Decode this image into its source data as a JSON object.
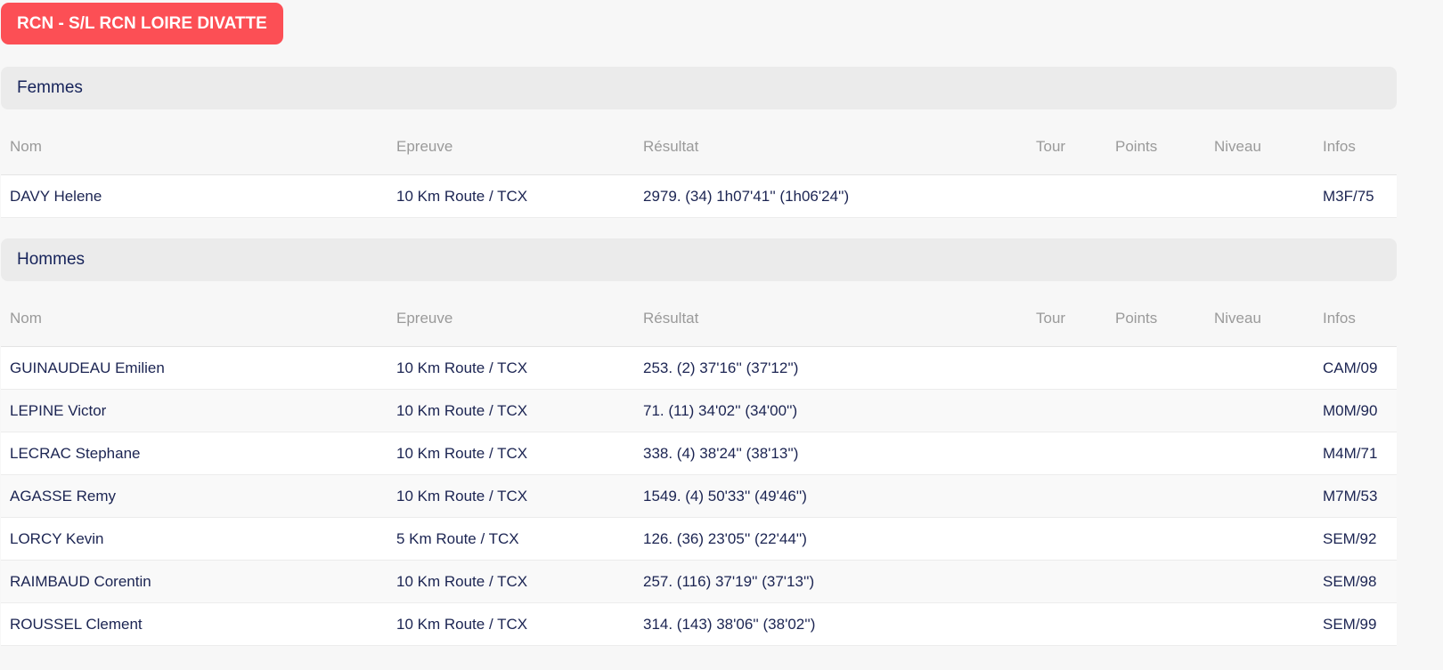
{
  "club": "RCN - S/L RCN LOIRE DIVATTE",
  "columns": [
    "Nom",
    "Epreuve",
    "Résultat",
    "Tour",
    "Points",
    "Niveau",
    "Infos"
  ],
  "sections": [
    {
      "title": "Femmes",
      "rows": [
        {
          "nom": "DAVY Helene",
          "epreuve": "10 Km Route / TCX",
          "resultat": "2979. (34) 1h07'41'' (1h06'24'')",
          "infos": "M3F/75"
        }
      ]
    },
    {
      "title": "Hommes",
      "rows": [
        {
          "nom": "GUINAUDEAU Emilien",
          "epreuve": "10 Km Route / TCX",
          "resultat": "253. (2) 37'16'' (37'12'')",
          "infos": "CAM/09"
        },
        {
          "nom": "LEPINE Victor",
          "epreuve": "10 Km Route / TCX",
          "resultat": "71. (11) 34'02'' (34'00'')",
          "infos": "M0M/90"
        },
        {
          "nom": "LECRAC Stephane",
          "epreuve": "10 Km Route / TCX",
          "resultat": "338. (4) 38'24'' (38'13'')",
          "infos": "M4M/71"
        },
        {
          "nom": "AGASSE Remy",
          "epreuve": "10 Km Route / TCX",
          "resultat": "1549. (4) 50'33'' (49'46'')",
          "infos": "M7M/53"
        },
        {
          "nom": "LORCY Kevin",
          "epreuve": "5 Km Route / TCX",
          "resultat": "126. (36) 23'05'' (22'44'')",
          "infos": "SEM/92"
        },
        {
          "nom": "RAIMBAUD Corentin",
          "epreuve": "10 Km Route / TCX",
          "resultat": "257. (116) 37'19'' (37'13'')",
          "infos": "SEM/98"
        },
        {
          "nom": "ROUSSEL Clement",
          "epreuve": "10 Km Route / TCX",
          "resultat": "314. (143) 38'06'' (38'02'')",
          "infos": "SEM/99"
        }
      ]
    }
  ]
}
